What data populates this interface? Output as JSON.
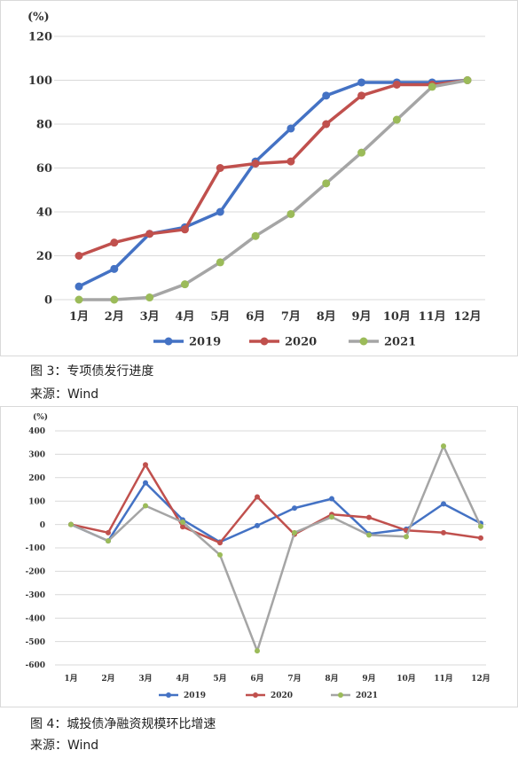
{
  "chart_data": [
    {
      "type": "line",
      "unit_label": "(%)",
      "categories": [
        "1月",
        "2月",
        "3月",
        "4月",
        "5月",
        "6月",
        "7月",
        "8月",
        "9月",
        "10月",
        "11月",
        "12月"
      ],
      "ylim": [
        0,
        120
      ],
      "yticks": [
        0,
        20,
        40,
        60,
        80,
        100,
        120
      ],
      "grid": true,
      "legend": "bottom",
      "series": [
        {
          "name": "2019",
          "color": "#4472C4",
          "values": [
            6,
            14,
            30,
            33,
            40,
            63,
            78,
            93,
            99,
            99,
            99,
            100
          ]
        },
        {
          "name": "2020",
          "color": "#C0504D",
          "values": [
            20,
            26,
            30,
            32,
            60,
            62,
            63,
            80,
            93,
            98,
            98,
            100
          ]
        },
        {
          "name": "2021",
          "color": "#A5A5A5",
          "marker_color": "#9BBB59",
          "values": [
            0,
            0,
            1,
            7,
            17,
            29,
            39,
            53,
            67,
            82,
            97,
            100
          ]
        }
      ]
    },
    {
      "type": "line",
      "unit_label": "(%)",
      "categories": [
        "1月",
        "2月",
        "3月",
        "4月",
        "5月",
        "6月",
        "7月",
        "8月",
        "9月",
        "10月",
        "11月",
        "12月"
      ],
      "ylim": [
        -600,
        400
      ],
      "yticks": [
        400,
        300,
        200,
        100,
        0,
        -100,
        -200,
        -300,
        -400,
        -500,
        -600
      ],
      "grid": true,
      "legend": "bottom",
      "series": [
        {
          "name": "2019",
          "color": "#4472C4",
          "values": [
            0,
            -70,
            178,
            20,
            -75,
            -5,
            70,
            110,
            -40,
            -20,
            88,
            5
          ]
        },
        {
          "name": "2020",
          "color": "#C0504D",
          "values": [
            0,
            -35,
            255,
            -10,
            -78,
            118,
            -42,
            43,
            30,
            -25,
            -35,
            -58
          ]
        },
        {
          "name": "2021",
          "color": "#A5A5A5",
          "marker_color": "#9BBB59",
          "values": [
            0,
            -70,
            80,
            10,
            -130,
            -540,
            -35,
            32,
            -45,
            -52,
            335,
            -8
          ]
        }
      ]
    }
  ],
  "captions": {
    "fig3_title": "图 3：专项债发行进度",
    "fig3_source": "来源：Wind",
    "fig4_title": "图 4：城投债净融资规模环比增速",
    "fig4_source": "来源：Wind"
  }
}
